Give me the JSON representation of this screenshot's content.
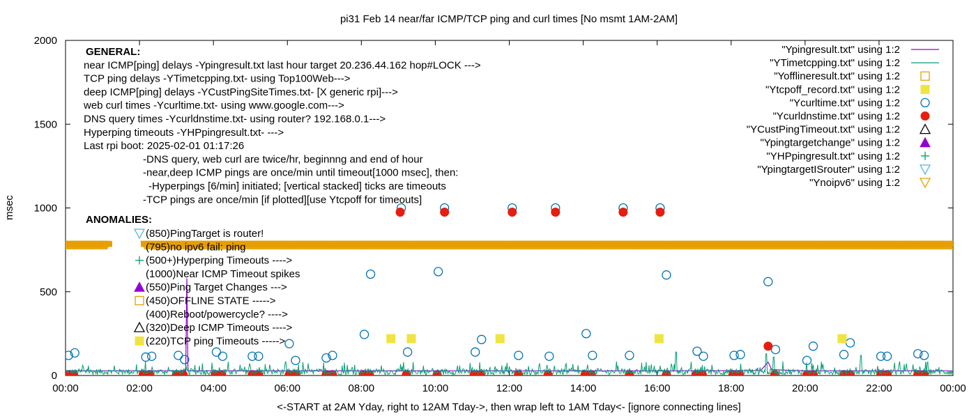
{
  "chart_data": {
    "type": "scatter",
    "title": "pi31 Feb 14  near/far ICMP/TCP ping and curl times [No msmt 1AM-2AM]",
    "xlabel": "<-START at 2AM Yday, right to 12AM Tday->, then wrap left to 1AM Tday<- [ignore connecting lines]",
    "ylabel": "msec",
    "xlim": [
      0,
      24
    ],
    "ylim": [
      0,
      2000
    ],
    "grid": false,
    "legend_position": "top-right",
    "x_ticks": [
      {
        "value": 0,
        "label": "00:00"
      },
      {
        "value": 2,
        "label": "02:00"
      },
      {
        "value": 4,
        "label": "04:00"
      },
      {
        "value": 6,
        "label": "06:00"
      },
      {
        "value": 8,
        "label": "08:00"
      },
      {
        "value": 10,
        "label": "10:00"
      },
      {
        "value": 12,
        "label": "12:00"
      },
      {
        "value": 14,
        "label": "14:00"
      },
      {
        "value": 16,
        "label": "16:00"
      },
      {
        "value": 18,
        "label": "18:00"
      },
      {
        "value": 20,
        "label": "20:00"
      },
      {
        "value": 22,
        "label": "22:00"
      },
      {
        "value": 24,
        "label": "00:00"
      }
    ],
    "y_ticks": [
      {
        "value": 0,
        "label": "0"
      },
      {
        "value": 500,
        "label": "500"
      },
      {
        "value": 1000,
        "label": "1000"
      },
      {
        "value": 1500,
        "label": "1500"
      },
      {
        "value": 2000,
        "label": "2000"
      }
    ],
    "annotations": [
      {
        "text": "GENERAL:",
        "bold": true,
        "indent": 0
      },
      {
        "text": "near ICMP[ping] delays -Ypingresult.txt last hour target 20.236.44.162 hop#LOCK --->",
        "indent": 0
      },
      {
        "text": "TCP ping delays -YTimetcpping.txt- using Top100Web--->",
        "indent": 0
      },
      {
        "text": "deep ICMP[ping] delays -YCustPingSiteTimes.txt- [X generic rpi]--->",
        "indent": 0
      },
      {
        "text": "web curl times -Ycurltime.txt- using www.google.com--->",
        "indent": 0
      },
      {
        "text": "DNS query times -Ycurldnstime.txt- using router? 192.168.0.1--->",
        "indent": 0
      },
      {
        "text": "Hyperping timeouts -YHPpingresult.txt- --->",
        "indent": 0
      },
      {
        "text": "Last rpi boot: 2025-02-01 01:17:26",
        "indent": 0
      },
      {
        "text": "-DNS query, web curl are twice/hr, beginnng and end of hour",
        "indent": 1
      },
      {
        "text": "-near,deep ICMP pings are once/min until timeout[1000 msec], then:",
        "indent": 1
      },
      {
        "text": "-Hyperpings [6/min] initiated; [vertical stacked] ticks are timeouts",
        "indent": 2
      },
      {
        "text": "-TCP pings are once/min [if plotted][use Ytcpoff for timeouts]",
        "indent": 1
      },
      {
        "text": "ANOMALIES:",
        "bold": true,
        "indent": 0
      }
    ],
    "anomaly_key": [
      {
        "text": "(850)PingTarget is router!",
        "marker": "triangle-down-open"
      },
      {
        "text": "(795)no ipv6 fail: ping",
        "marker": "none"
      },
      {
        "text": "(500+)Hyperping Timeouts ---->",
        "marker": "plus"
      },
      {
        "text": "(1000)Near ICMP Timeout spikes",
        "marker": "none"
      },
      {
        "text": "(550)Ping Target Changes --->",
        "marker": "triangle-up-filled"
      },
      {
        "text": "(450)OFFLINE STATE ----->",
        "marker": "square-open"
      },
      {
        "text": "(400)Reboot/powercycle? ---->",
        "marker": "none"
      },
      {
        "text": "(320)Deep ICMP Timeouts ---->",
        "marker": "triangle-up-open"
      },
      {
        "text": "(220)TCP ping Timeouts ----->",
        "marker": "square-filled"
      }
    ],
    "legend": [
      {
        "label": "\"Ypingresult.txt\" using 1:2",
        "marker": "line",
        "color": "#9400d3"
      },
      {
        "label": "\"YTimetcpping.txt\" using 1:2",
        "marker": "line",
        "color": "#009e73"
      },
      {
        "label": "\"Yofflineresult.txt\" using 1:2",
        "marker": "square-open",
        "color": "#e69f00"
      },
      {
        "label": "\"Ytcpoff_record.txt\" using 1:2",
        "marker": "square-filled",
        "color": "#f0e442"
      },
      {
        "label": "\"Ycurltime.txt\" using 1:2",
        "marker": "circle-open",
        "color": "#0072b2"
      },
      {
        "label": "\"Ycurldnstime.txt\" using 1:2",
        "marker": "circle-filled",
        "color": "#e51e10"
      },
      {
        "label": "\"YCustPingTimeout.txt\" using 1:2",
        "marker": "triangle-up-open",
        "color": "#000000"
      },
      {
        "label": "\"Ypingtargetchange\" using 1:2",
        "marker": "triangle-up-filled",
        "color": "#9400d3"
      },
      {
        "label": "\"YHPpingresult.txt\" using 1:2",
        "marker": "plus",
        "color": "#009e73"
      },
      {
        "label": "\"YpingtargetISrouter\" using 1:2",
        "marker": "triangle-down-open",
        "color": "#56b4e9"
      },
      {
        "label": "\"Ynoipv6\" using 1:2",
        "marker": "triangle-down-open",
        "color": "#e69f00"
      }
    ],
    "series": [
      {
        "name": "\"Ycurltime.txt\" using 1:2",
        "marker": "circle-open",
        "color": "#0072b2",
        "points": [
          [
            0.08,
            120
          ],
          [
            0.25,
            135
          ],
          [
            2.17,
            110
          ],
          [
            2.33,
            115
          ],
          [
            3.05,
            120
          ],
          [
            3.22,
            95
          ],
          [
            4.08,
            140
          ],
          [
            4.25,
            115
          ],
          [
            5.05,
            115
          ],
          [
            5.22,
            115
          ],
          [
            6.05,
            190
          ],
          [
            6.22,
            90
          ],
          [
            7.05,
            105
          ],
          [
            7.22,
            120
          ],
          [
            8.08,
            245
          ],
          [
            8.25,
            605
          ],
          [
            9.08,
            1000
          ],
          [
            9.25,
            140
          ],
          [
            10.08,
            620
          ],
          [
            10.25,
            1000
          ],
          [
            11.08,
            140
          ],
          [
            11.25,
            215
          ],
          [
            12.08,
            1000
          ],
          [
            12.25,
            120
          ],
          [
            13.08,
            115
          ],
          [
            13.25,
            1000
          ],
          [
            14.08,
            250
          ],
          [
            14.25,
            120
          ],
          [
            15.08,
            1000
          ],
          [
            15.25,
            120
          ],
          [
            16.08,
            1000
          ],
          [
            16.25,
            600
          ],
          [
            17.08,
            145
          ],
          [
            17.25,
            115
          ],
          [
            18.08,
            120
          ],
          [
            18.25,
            125
          ],
          [
            19.0,
            560
          ],
          [
            19.2,
            155
          ],
          [
            20.05,
            90
          ],
          [
            20.22,
            175
          ],
          [
            21.05,
            125
          ],
          [
            21.22,
            195
          ],
          [
            22.05,
            115
          ],
          [
            22.22,
            115
          ],
          [
            23.05,
            130
          ],
          [
            23.22,
            120
          ]
        ]
      },
      {
        "name": "\"Ycurldnstime.txt\" using 1:2",
        "marker": "circle-filled",
        "color": "#e51e10",
        "points": [
          [
            0.05,
            5
          ],
          [
            0.22,
            5
          ],
          [
            2.1,
            5
          ],
          [
            2.28,
            5
          ],
          [
            3.0,
            5
          ],
          [
            3.18,
            5
          ],
          [
            4.05,
            5
          ],
          [
            4.22,
            5
          ],
          [
            5.05,
            5
          ],
          [
            5.22,
            5
          ],
          [
            6.05,
            5
          ],
          [
            6.22,
            5
          ],
          [
            7.05,
            5
          ],
          [
            7.22,
            5
          ],
          [
            8.05,
            5
          ],
          [
            8.22,
            5
          ],
          [
            9.05,
            975
          ],
          [
            9.22,
            5
          ],
          [
            10.05,
            5
          ],
          [
            10.25,
            975
          ],
          [
            11.05,
            5
          ],
          [
            11.22,
            5
          ],
          [
            12.08,
            975
          ],
          [
            12.25,
            5
          ],
          [
            13.05,
            5
          ],
          [
            13.25,
            975
          ],
          [
            14.05,
            5
          ],
          [
            14.22,
            5
          ],
          [
            15.08,
            975
          ],
          [
            15.25,
            5
          ],
          [
            16.08,
            975
          ],
          [
            16.25,
            5
          ],
          [
            17.05,
            5
          ],
          [
            17.22,
            5
          ],
          [
            18.05,
            5
          ],
          [
            18.22,
            5
          ],
          [
            19.0,
            175
          ],
          [
            19.18,
            5
          ],
          [
            20.05,
            5
          ],
          [
            20.22,
            5
          ],
          [
            21.05,
            5
          ],
          [
            21.22,
            5
          ],
          [
            22.05,
            5
          ],
          [
            22.22,
            5
          ],
          [
            23.05,
            5
          ],
          [
            23.22,
            5
          ]
        ]
      },
      {
        "name": "\"Ytcpoff_record.txt\" using 1:2",
        "marker": "square-filled",
        "color": "#f0e442",
        "points": [
          [
            8.8,
            220
          ],
          [
            9.35,
            220
          ],
          [
            11.75,
            220
          ],
          [
            16.05,
            220
          ],
          [
            21.0,
            220
          ]
        ]
      },
      {
        "name": "\"Ynoipv6\" using 1:2",
        "marker": "triangle-down-open",
        "color": "#e69f00",
        "band_y": 780,
        "points": [],
        "ranges": [
          [
            0,
            1.15
          ],
          [
            2.15,
            24
          ]
        ]
      },
      {
        "name": "\"Ypingresult.txt\" using 1:2",
        "marker": "line",
        "color": "#9400d3",
        "points": [
          [
            0,
            28
          ],
          [
            2,
            28
          ],
          [
            3.25,
            28
          ],
          [
            3.28,
            580
          ],
          [
            3.31,
            28
          ],
          [
            8,
            28
          ],
          [
            12,
            28
          ],
          [
            16,
            28
          ],
          [
            18.8,
            30
          ],
          [
            19.0,
            80
          ],
          [
            19.1,
            35
          ],
          [
            20,
            28
          ],
          [
            24,
            28
          ]
        ]
      },
      {
        "name": "\"YTimetcpping.txt\" using 1:2",
        "marker": "line",
        "color": "#009e73",
        "noise_min": 5,
        "noise_max": 55,
        "spikes": [
          [
            16.5,
            140
          ],
          [
            18.95,
            130
          ],
          [
            19.15,
            110
          ],
          [
            21.5,
            120
          ]
        ]
      },
      {
        "name": "\"YHPpingresult.txt\" using 1:2",
        "marker": "plus",
        "color": "#009e73",
        "points": []
      }
    ]
  }
}
